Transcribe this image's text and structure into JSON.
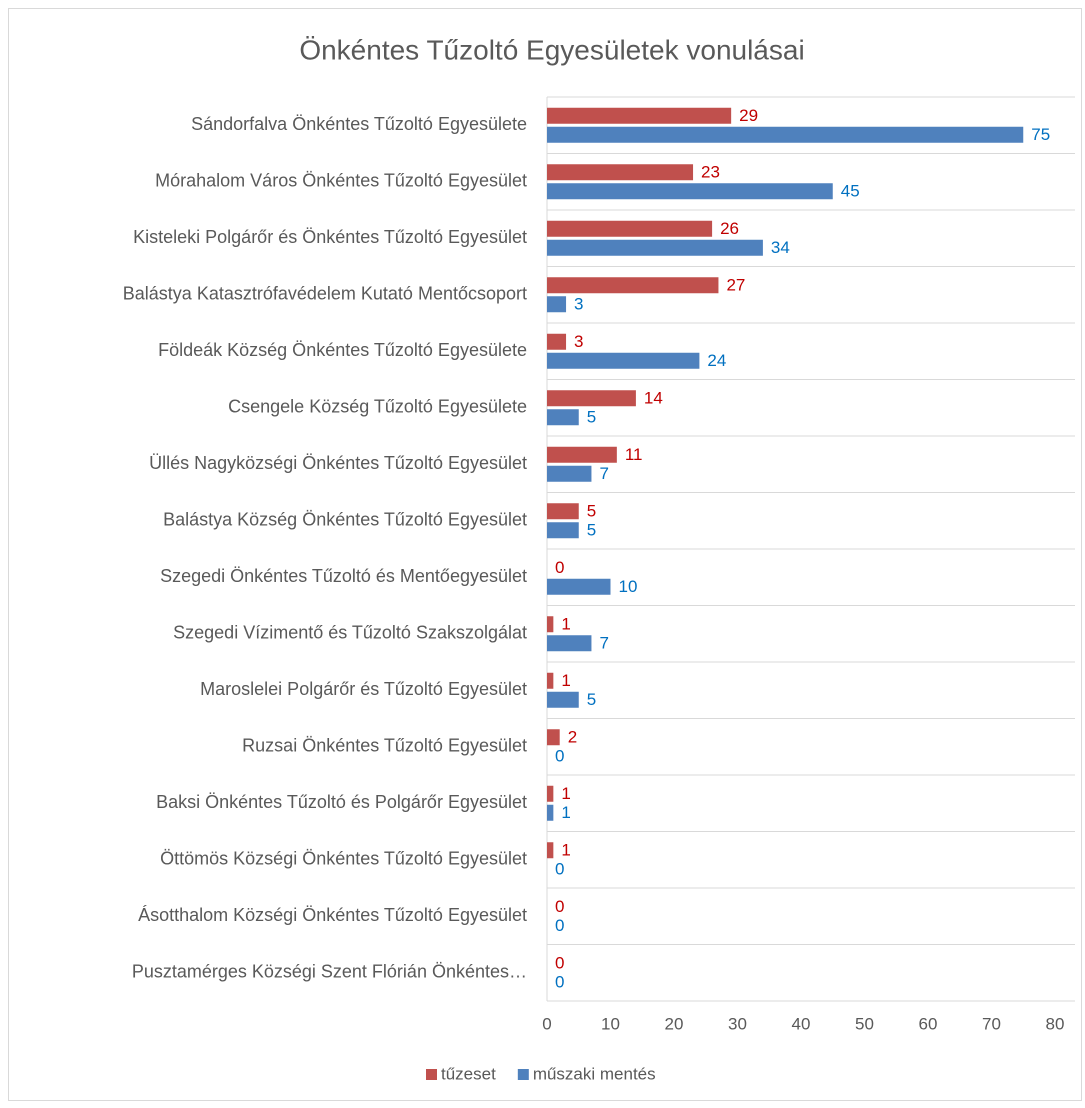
{
  "chart_data": {
    "type": "hbar",
    "title": "Önkéntes Tűzoltó Egyesületek vonulásai",
    "categories": [
      "Sándorfalva Önkéntes Tűzoltó Egyesülete",
      "Mórahalom Város Önkéntes Tűzoltó Egyesület",
      "Kisteleki Polgárőr és Önkéntes Tűzoltó Egyesület",
      "Balástya Katasztrófavédelem Kutató Mentőcsoport",
      "Földeák Község Önkéntes Tűzoltó Egyesülete",
      "Csengele Község Tűzoltó Egyesülete",
      "Üllés Nagyközségi Önkéntes Tűzoltó Egyesület",
      "Balástya Község Önkéntes Tűzoltó Egyesület",
      "Szegedi Önkéntes Tűzoltó és Mentőegyesület",
      "Szegedi Vízimentő és Tűzoltó Szakszolgálat",
      "Maroslelei Polgárőr és Tűzoltó Egyesület",
      "Ruzsai Önkéntes Tűzoltó Egyesület",
      "Baksi Önkéntes Tűzoltó és Polgárőr Egyesület",
      "Öttömös Községi Önkéntes Tűzoltó Egyesület",
      "Ásotthalom Községi Önkéntes Tűzoltó Egyesület",
      "Pusztamérges Községi Szent Flórián Önkéntes…"
    ],
    "series": [
      {
        "name": "tűzeset",
        "color": "#c0504d",
        "label_color": "#c00000",
        "values": [
          29,
          23,
          26,
          27,
          3,
          14,
          11,
          5,
          0,
          1,
          1,
          2,
          1,
          1,
          0,
          0
        ]
      },
      {
        "name": "műszaki mentés",
        "color": "#4f81bd",
        "label_color": "#0070c0",
        "values": [
          75,
          45,
          34,
          3,
          24,
          5,
          7,
          5,
          10,
          7,
          5,
          0,
          1,
          0,
          0,
          0
        ]
      }
    ],
    "xlim": [
      0,
      80
    ],
    "xticks": [
      0,
      10,
      20,
      30,
      40,
      50,
      60,
      70,
      80
    ],
    "legend": "bottom"
  }
}
